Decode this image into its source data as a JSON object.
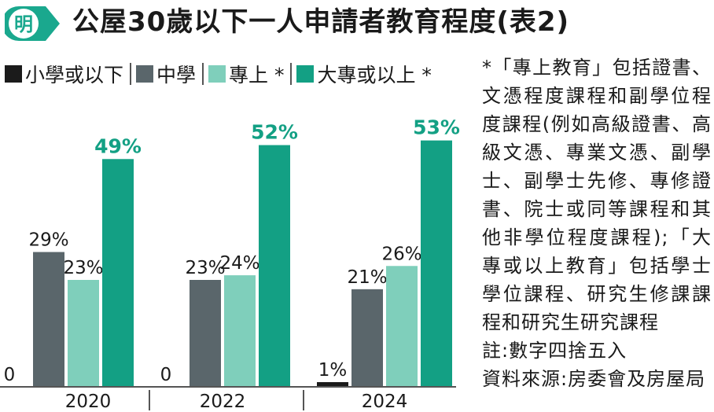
{
  "title": "公屋30歲以下一人申請者教育程度(表2)",
  "badge_text": "明",
  "colors": {
    "badge": "#1aa88e",
    "primary_school": "#1b1b1b",
    "secondary": "#5a666b",
    "post_secondary": "#7fcfbb",
    "degree": "#13a084",
    "label_highlight": "#13a084",
    "axis": "#555555"
  },
  "legend": [
    {
      "label": "小學或以下",
      "color_key": "primary_school"
    },
    {
      "label": "中學",
      "color_key": "secondary"
    },
    {
      "label": "專上 *",
      "color_key": "post_secondary"
    },
    {
      "label": "大專或以上 *",
      "color_key": "degree"
    }
  ],
  "note": "*「專上教育」包括證書、文憑程度課程和副學位程度課程(例如高級證書、高級文憑、專業文憑、副學士、副學士先修、專修證書、院士或同等課程和其他非學位程度課程);「大專或以上教育」包括學士學位課程、研究生修課課程和研究生研究課程\n註:數字四捨五入\n資料來源:房委會及房屋局",
  "chart_data": {
    "type": "bar",
    "categories": [
      "2020",
      "2022",
      "2024"
    ],
    "series": [
      {
        "name": "小學或以下",
        "values": [
          0,
          0,
          1
        ],
        "labels": [
          "0",
          "0",
          "1%"
        ]
      },
      {
        "name": "中學",
        "values": [
          29,
          23,
          21
        ],
        "labels": [
          "29%",
          "23%",
          "21%"
        ]
      },
      {
        "name": "專上 *",
        "values": [
          23,
          24,
          26
        ],
        "labels": [
          "23%",
          "24%",
          "26%"
        ]
      },
      {
        "name": "大專或以上 *",
        "values": [
          49,
          52,
          53
        ],
        "labels": [
          "49%",
          "52%",
          "53%"
        ]
      }
    ],
    "ylim": [
      0,
      60
    ],
    "grid": false,
    "legend_position": "top"
  }
}
